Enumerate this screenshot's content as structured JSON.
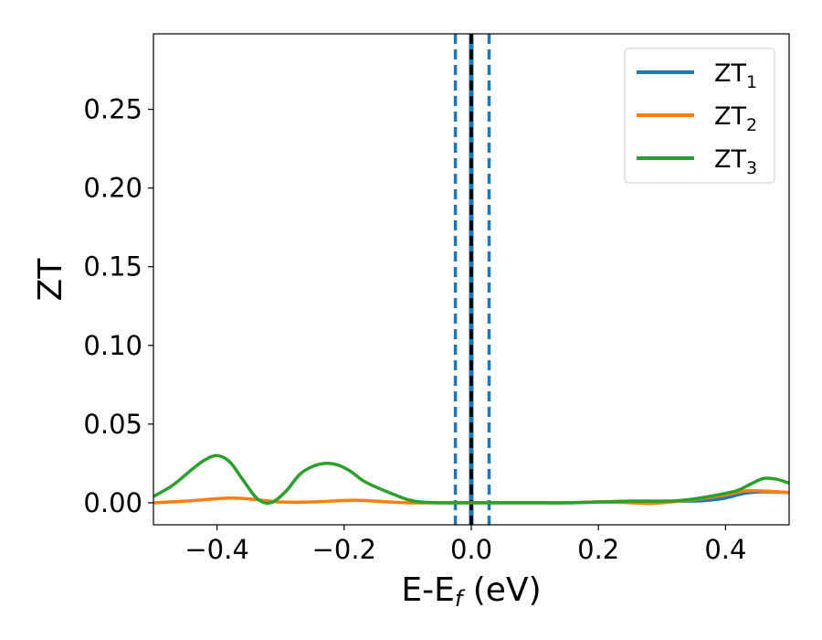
{
  "chart_data": {
    "type": "line",
    "xlabel": "E-E",
    "xlabel_sub": "f",
    "xlabel_unit": " (eV)",
    "ylabel": "ZT",
    "xlim": [
      -0.5,
      0.5
    ],
    "ylim": [
      -0.014,
      0.298
    ],
    "x_ticks": [
      -0.4,
      -0.2,
      0.0,
      0.2,
      0.4
    ],
    "x_tick_labels": [
      "−0.4",
      "−0.2",
      "0.0",
      "0.2",
      "0.4"
    ],
    "y_ticks": [
      0.0,
      0.05,
      0.1,
      0.15,
      0.2,
      0.25
    ],
    "y_tick_labels": [
      "0.00",
      "0.05",
      "0.10",
      "0.15",
      "0.20",
      "0.25"
    ],
    "grid": false,
    "legend_position": "top-right",
    "vertical_lines": [
      {
        "x": -0.025,
        "style": "dashed",
        "color": "#1f77b4"
      },
      {
        "x": 0.0,
        "style": "solid",
        "color": "#1f77b4"
      },
      {
        "x": 0.0,
        "style": "dashed",
        "color": "#000000"
      },
      {
        "x": 0.028,
        "style": "dashed",
        "color": "#1f77b4"
      }
    ],
    "series": [
      {
        "name": "ZT",
        "sub": "1",
        "color": "#1f77b4",
        "x": [
          -0.1,
          -0.05,
          0.0,
          0.05,
          0.1,
          0.15,
          0.2,
          0.25,
          0.3,
          0.34,
          0.37,
          0.4,
          0.43,
          0.46,
          0.5
        ],
        "y": [
          0.0,
          0.0,
          0.0,
          0.0,
          0.0,
          0.0,
          0.0005,
          0.001,
          0.001,
          0.001,
          0.0015,
          0.003,
          0.006,
          0.007,
          0.0065
        ]
      },
      {
        "name": "ZT",
        "sub": "2",
        "color": "#ff7f0e",
        "x": [
          -0.5,
          -0.45,
          -0.42,
          -0.38,
          -0.35,
          -0.3,
          -0.25,
          -0.2,
          -0.17,
          -0.13,
          -0.1,
          -0.05,
          0.0,
          0.05,
          0.1,
          0.15,
          0.2,
          0.25,
          0.28,
          0.3,
          0.35,
          0.4,
          0.43,
          0.46,
          0.5
        ],
        "y": [
          0.0,
          0.001,
          0.002,
          0.003,
          0.0025,
          0.0005,
          0.0005,
          0.0015,
          0.0015,
          0.0005,
          0.0,
          0.0,
          0.0,
          0.0,
          0.0,
          0.0,
          0.0005,
          0.0,
          -0.0005,
          0.0,
          0.002,
          0.005,
          0.0075,
          0.0075,
          0.0065
        ]
      },
      {
        "name": "ZT",
        "sub": "3",
        "color": "#2ca02c",
        "x": [
          -0.5,
          -0.47,
          -0.44,
          -0.42,
          -0.4,
          -0.38,
          -0.36,
          -0.34,
          -0.325,
          -0.31,
          -0.29,
          -0.27,
          -0.25,
          -0.23,
          -0.21,
          -0.19,
          -0.17,
          -0.15,
          -0.12,
          -0.1,
          -0.08,
          -0.05,
          0.0,
          0.05,
          0.1,
          0.15,
          0.2,
          0.25,
          0.28,
          0.3,
          0.33,
          0.36,
          0.4,
          0.42,
          0.44,
          0.46,
          0.48,
          0.5
        ],
        "y": [
          0.004,
          0.011,
          0.021,
          0.027,
          0.03,
          0.026,
          0.015,
          0.004,
          0.0,
          0.001,
          0.008,
          0.018,
          0.023,
          0.025,
          0.024,
          0.02,
          0.014,
          0.01,
          0.005,
          0.002,
          0.0005,
          0.0,
          0.0,
          0.0,
          0.0,
          0.0,
          0.0005,
          0.001,
          0.001,
          0.001,
          0.0015,
          0.003,
          0.006,
          0.008,
          0.012,
          0.0155,
          0.015,
          0.0125
        ]
      }
    ]
  }
}
